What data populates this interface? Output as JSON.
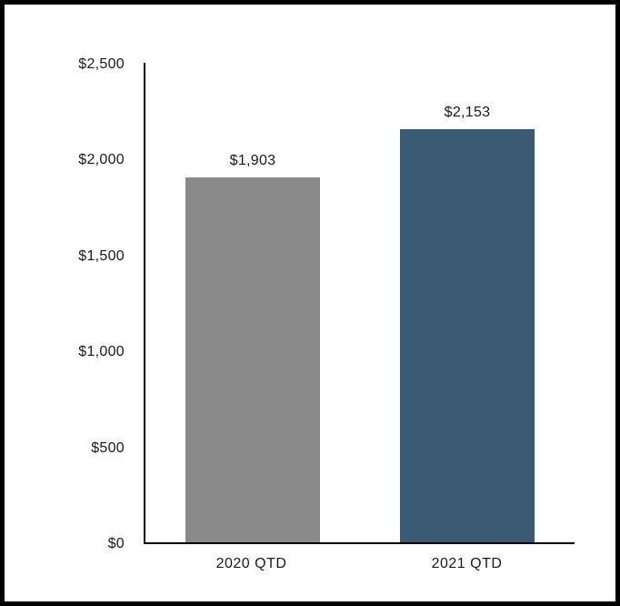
{
  "chart_data": {
    "type": "bar",
    "title": "",
    "xlabel": "",
    "ylabel": "",
    "categories": [
      "2020 QTD",
      "2021 QTD"
    ],
    "values": [
      1903,
      2153
    ],
    "value_labels": [
      "$1,903",
      "$2,153"
    ],
    "bar_colors": [
      "#8a8a8a",
      "#3b5a74"
    ],
    "ylim": [
      0,
      2500
    ],
    "yticks": [
      0,
      500,
      1000,
      1500,
      2000,
      2500
    ],
    "ytick_labels": [
      "$0",
      "$500",
      "$1,000",
      "$1,500",
      "$2,000",
      "$2,500"
    ],
    "grid": false,
    "legend": false,
    "axis_color": "#000000",
    "text_color": "#1a1a1a"
  }
}
